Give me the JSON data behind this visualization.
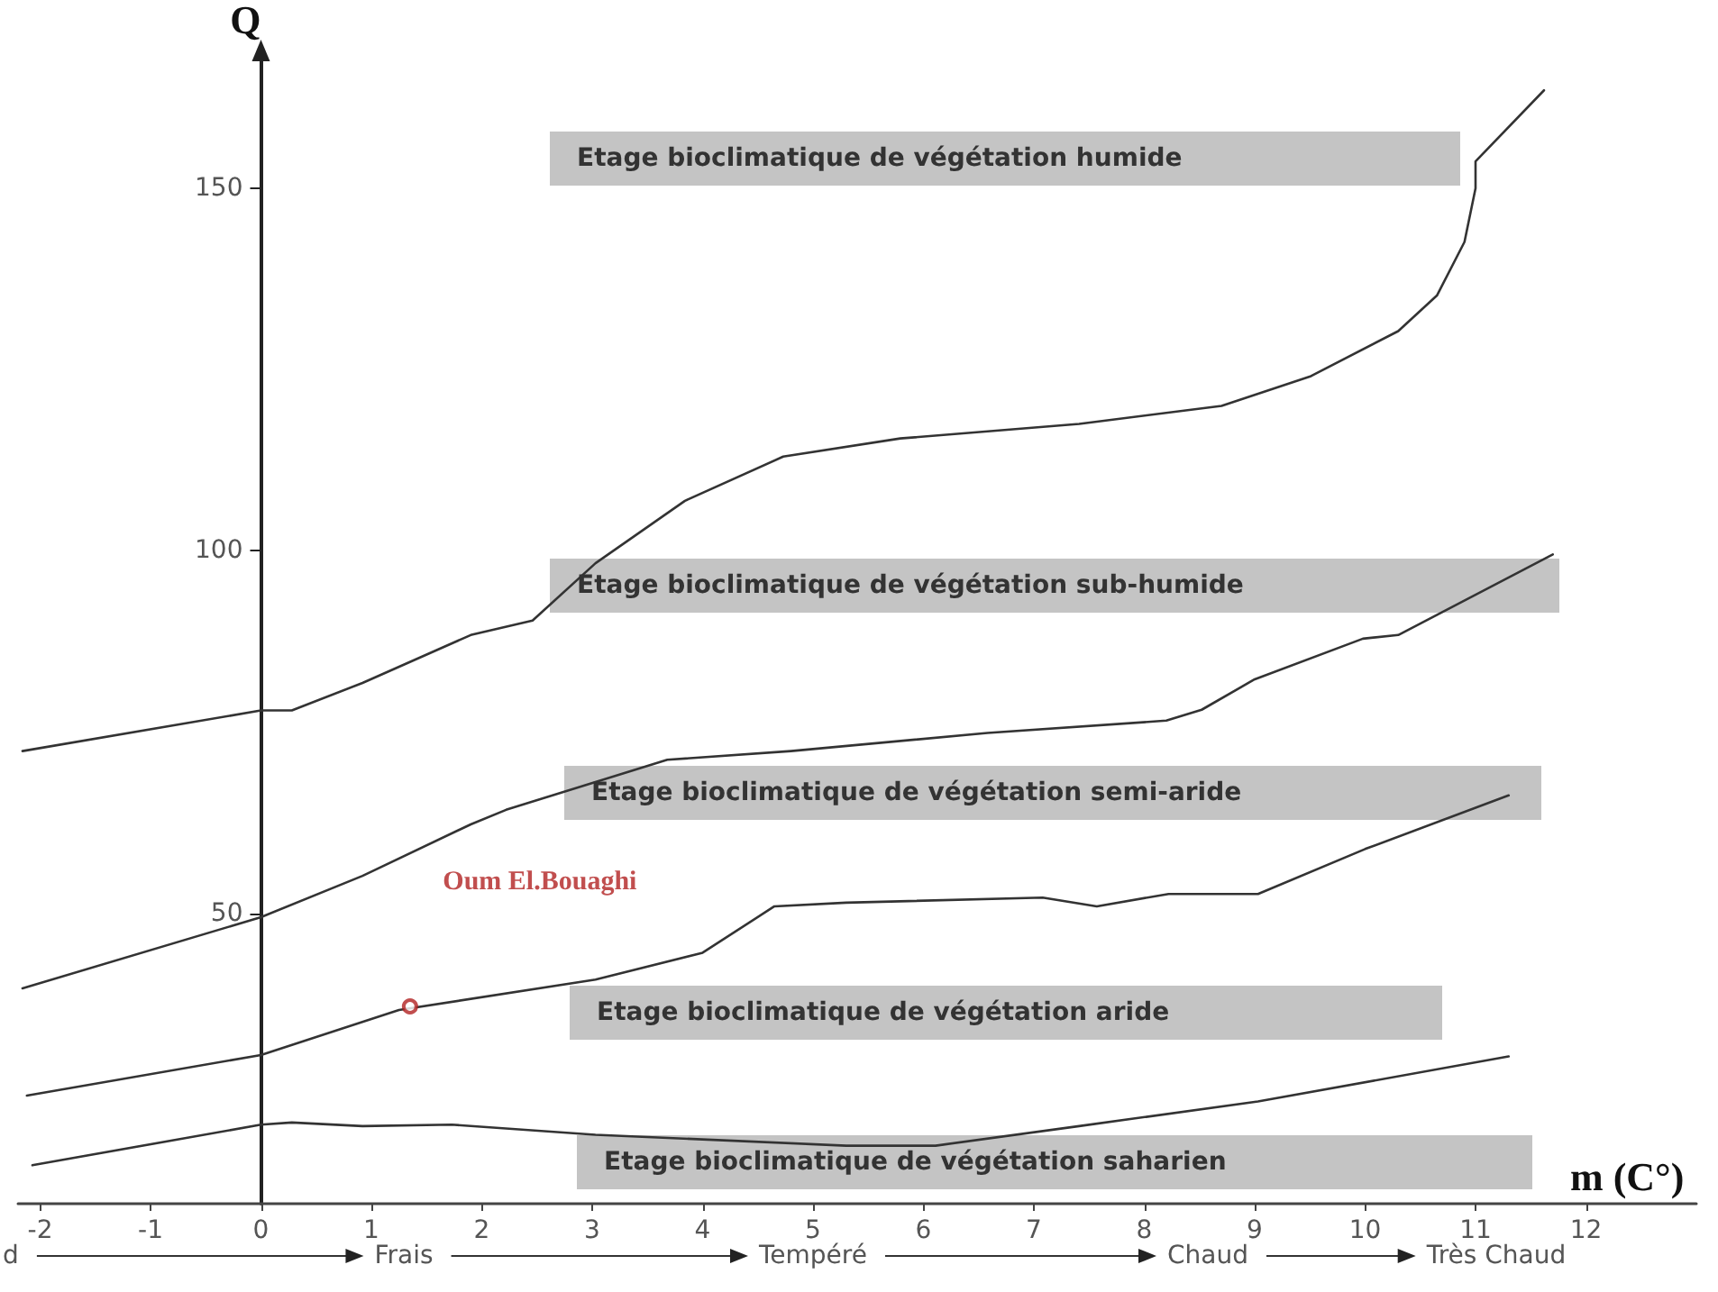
{
  "chart_data": {
    "type": "line",
    "xlabel": "m (C°)",
    "ylabel": "Q",
    "xlim": [
      -2.2,
      13
    ],
    "xticks": [
      -2,
      -1,
      0,
      1,
      2,
      3,
      4,
      5,
      6,
      7,
      8,
      9,
      10,
      11,
      12
    ],
    "ylim": [
      10,
      168
    ],
    "yticks": [
      50,
      100,
      150
    ],
    "legend": false,
    "line_style": "solid",
    "series": [
      {
        "color": "#333333",
        "x": [
          -2.16,
          0,
          0.28,
          0.92,
          1.9,
          2.46,
          3.03,
          3.84,
          4.73,
          5.79,
          7.41,
          8.7,
          9.51,
          10.3,
          10.65,
          10.9,
          11.0,
          11.0,
          11.62
        ],
        "values": [
          72.4,
          78,
          78,
          81.8,
          88.4,
          90.4,
          98.3,
          106.9,
          113,
          115.5,
          117.5,
          120,
          124.1,
          130.3,
          135.2,
          142.6,
          150,
          153.7,
          163.5
        ]
      },
      {
        "color": "#333333",
        "x": [
          -2.16,
          0,
          0.92,
          1.9,
          2.22,
          3.68,
          4.8,
          6.58,
          8.2,
          8.52,
          9.0,
          9.98,
          10.3,
          11.7
        ],
        "values": [
          39.7,
          49.5,
          55.2,
          62.3,
          64.3,
          71.2,
          72.4,
          74.9,
          76.6,
          78.1,
          82.3,
          87.9,
          88.4,
          99.5
        ]
      },
      {
        "color": "#333333",
        "x": [
          -2.12,
          0,
          1.25,
          3.03,
          4.0,
          4.65,
          5.3,
          7.08,
          7.57,
          8.22,
          9.03,
          10.0,
          11.3
        ],
        "values": [
          24.9,
          30.5,
          36.7,
          40.9,
          44.6,
          51,
          51.5,
          52.2,
          51,
          52.7,
          52.7,
          58.9,
          66.3
        ]
      },
      {
        "color": "#333333",
        "x": [
          -2.07,
          0,
          0.28,
          0.92,
          1.73,
          3.03,
          5.3,
          6.11,
          7.41,
          9.03,
          11.3
        ],
        "values": [
          15.3,
          20.9,
          21.2,
          20.7,
          20.9,
          19.5,
          18,
          18,
          20.7,
          24.1,
          30.3
        ]
      },
      {
        "type": "scatter",
        "name": "Oum El.Bouaghi",
        "color": "#b22222",
        "marker": "circle",
        "x": [
          1.35
        ],
        "values": [
          37.2
        ]
      }
    ],
    "annotations": [
      "Etage bioclimatique de végétation humide",
      "Etage bioclimatique de végétation sub-humide",
      "Etage bioclimatique de végétation semi-aride",
      "Etage bioclimatique de végétation aride",
      "Etage bioclimatique de végétation saharien",
      "d",
      "Frais",
      "Tempéré",
      "Chaud",
      "Très Chaud"
    ]
  }
}
